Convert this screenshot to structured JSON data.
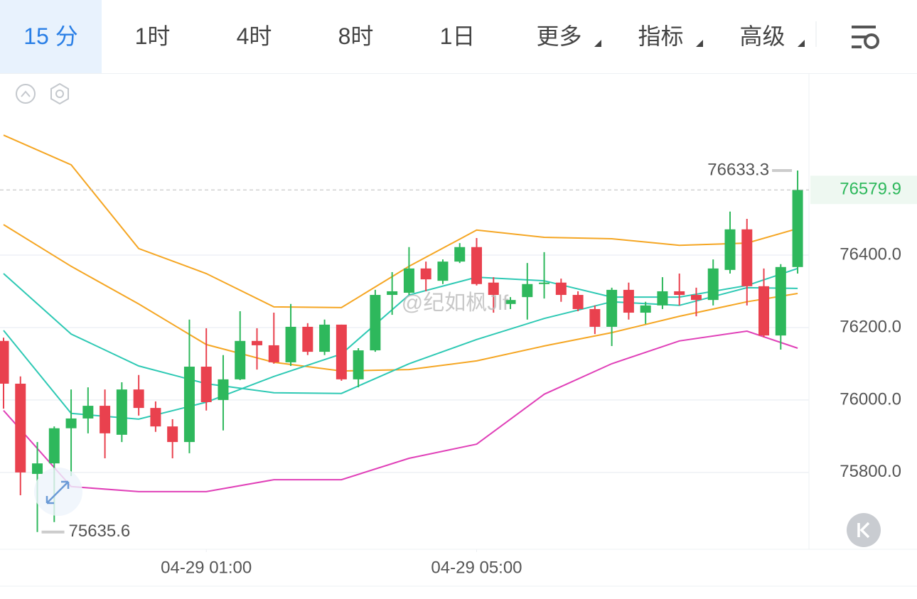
{
  "toolbar": {
    "tabs": [
      "15 分",
      "1时",
      "4时",
      "8时",
      "1日",
      "更多",
      "指标",
      "高级"
    ]
  },
  "watermark": "@纪如枫Jlf",
  "chart_data": {
    "type": "candlestick",
    "open": [
      76163,
      76045,
      75796,
      75825,
      75922,
      75949,
      75984,
      75904,
      76029,
      75978,
      75927,
      75884,
      76092,
      76000,
      76057,
      76163,
      76151,
      76104,
      76202,
      76133,
      76208,
      76057,
      76137,
      76290,
      76296,
      76363,
      76329,
      76382,
      76422,
      76324,
      76265,
      76284,
      76320,
      76324,
      76290,
      76251,
      76202,
      76304,
      76241,
      76261,
      76300,
      76290,
      76276,
      76359,
      76471,
      76314,
      76178,
      76367
    ],
    "high": [
      76172,
      76065,
      75884,
      75927,
      76029,
      76035,
      76029,
      76049,
      76069,
      75996,
      75947,
      76222,
      76198,
      76124,
      76245,
      76198,
      76241,
      76265,
      76212,
      76222,
      76208,
      76143,
      76304,
      76353,
      76422,
      76382,
      76388,
      76433,
      76447,
      76339,
      76284,
      76378,
      76408,
      76335,
      76300,
      76261,
      76310,
      76324,
      76271,
      76339,
      76349,
      76310,
      76388,
      76520,
      76500,
      76363,
      76375,
      76633.3
    ],
    "low": [
      75976,
      75737,
      75635.6,
      75663,
      75790,
      75908,
      75839,
      75884,
      75957,
      75912,
      75839,
      75853,
      75971,
      75916,
      76055,
      76084,
      76100,
      76094,
      76124,
      76124,
      76053,
      76035,
      76133,
      76235,
      76290,
      76300,
      76320,
      76378,
      76316,
      76241,
      76251,
      76222,
      76280,
      76271,
      76245,
      76182,
      76149,
      76222,
      76210,
      76251,
      76261,
      76231,
      76261,
      76349,
      76261,
      76173,
      76139,
      76349
    ],
    "close": [
      76045,
      75800,
      75825,
      75922,
      75949,
      75984,
      75908,
      76029,
      75978,
      75927,
      75884,
      76092,
      75994,
      76057,
      76163,
      76151,
      76104,
      76202,
      76133,
      76208,
      76057,
      76137,
      76290,
      76300,
      76363,
      76333,
      76382,
      76422,
      76320,
      76290,
      76276,
      76320,
      76324,
      76290,
      76251,
      76202,
      76304,
      76241,
      76261,
      76300,
      76290,
      76276,
      76363,
      76471,
      76314,
      76178,
      76367,
      76579.9
    ],
    "up_color": "#2eb85c",
    "down_color": "#e9414e",
    "series": [
      {
        "color": "#f5a623",
        "x": [
          0,
          4,
          8,
          12,
          16,
          20,
          24,
          28,
          32,
          36,
          40,
          44,
          47
        ],
        "values": [
          76731,
          76649,
          76418,
          76349,
          76257,
          76255,
          76369,
          76469,
          76449,
          76445,
          76427,
          76433,
          76473
        ]
      },
      {
        "color": "#f5a623",
        "x": [
          0,
          4,
          8,
          12,
          16,
          20,
          24,
          28,
          32,
          36,
          40,
          44,
          47
        ],
        "values": [
          76484,
          76369,
          76265,
          76153,
          76104,
          76080,
          76084,
          76108,
          76149,
          76186,
          76231,
          76271,
          76294
        ]
      },
      {
        "color": "#2ec9b4",
        "x": [
          0,
          4,
          8,
          12,
          16,
          20,
          24,
          28,
          32,
          36,
          40,
          44,
          47
        ],
        "values": [
          76349,
          76182,
          76094,
          76045,
          76020,
          76018,
          76100,
          76167,
          76225,
          76271,
          76261,
          76310,
          76308
        ]
      },
      {
        "color": "#2ec9b4",
        "x": [
          0,
          4,
          8,
          12,
          16,
          20,
          24,
          28,
          32,
          36,
          40,
          44,
          47
        ],
        "values": [
          76192,
          75963,
          75947,
          75994,
          76065,
          76127,
          76290,
          76339,
          76329,
          76284,
          76284,
          76316,
          76363
        ]
      },
      {
        "color": "#e040b8",
        "x": [
          0,
          4,
          8,
          12,
          16,
          20,
          24,
          28,
          32,
          36,
          40,
          44,
          47
        ],
        "values": [
          75971,
          75761,
          75747,
          75747,
          75780,
          75780,
          75839,
          75878,
          76016,
          76100,
          76163,
          76190,
          76143
        ]
      }
    ],
    "xlim": [
      -0.21,
      47.67
    ],
    "xticks": [
      {
        "value": 12,
        "label": "04-29 01:00"
      },
      {
        "value": 28,
        "label": "04-29 05:00"
      }
    ],
    "ylim": [
      75588,
      76902
    ],
    "yticks": [
      {
        "value": 76400,
        "label": "76400.0"
      },
      {
        "value": 76200,
        "label": "76200.0"
      },
      {
        "value": 76000,
        "label": "76000.0"
      },
      {
        "value": 75800,
        "label": "75800.0"
      }
    ],
    "grid": true
  }
}
